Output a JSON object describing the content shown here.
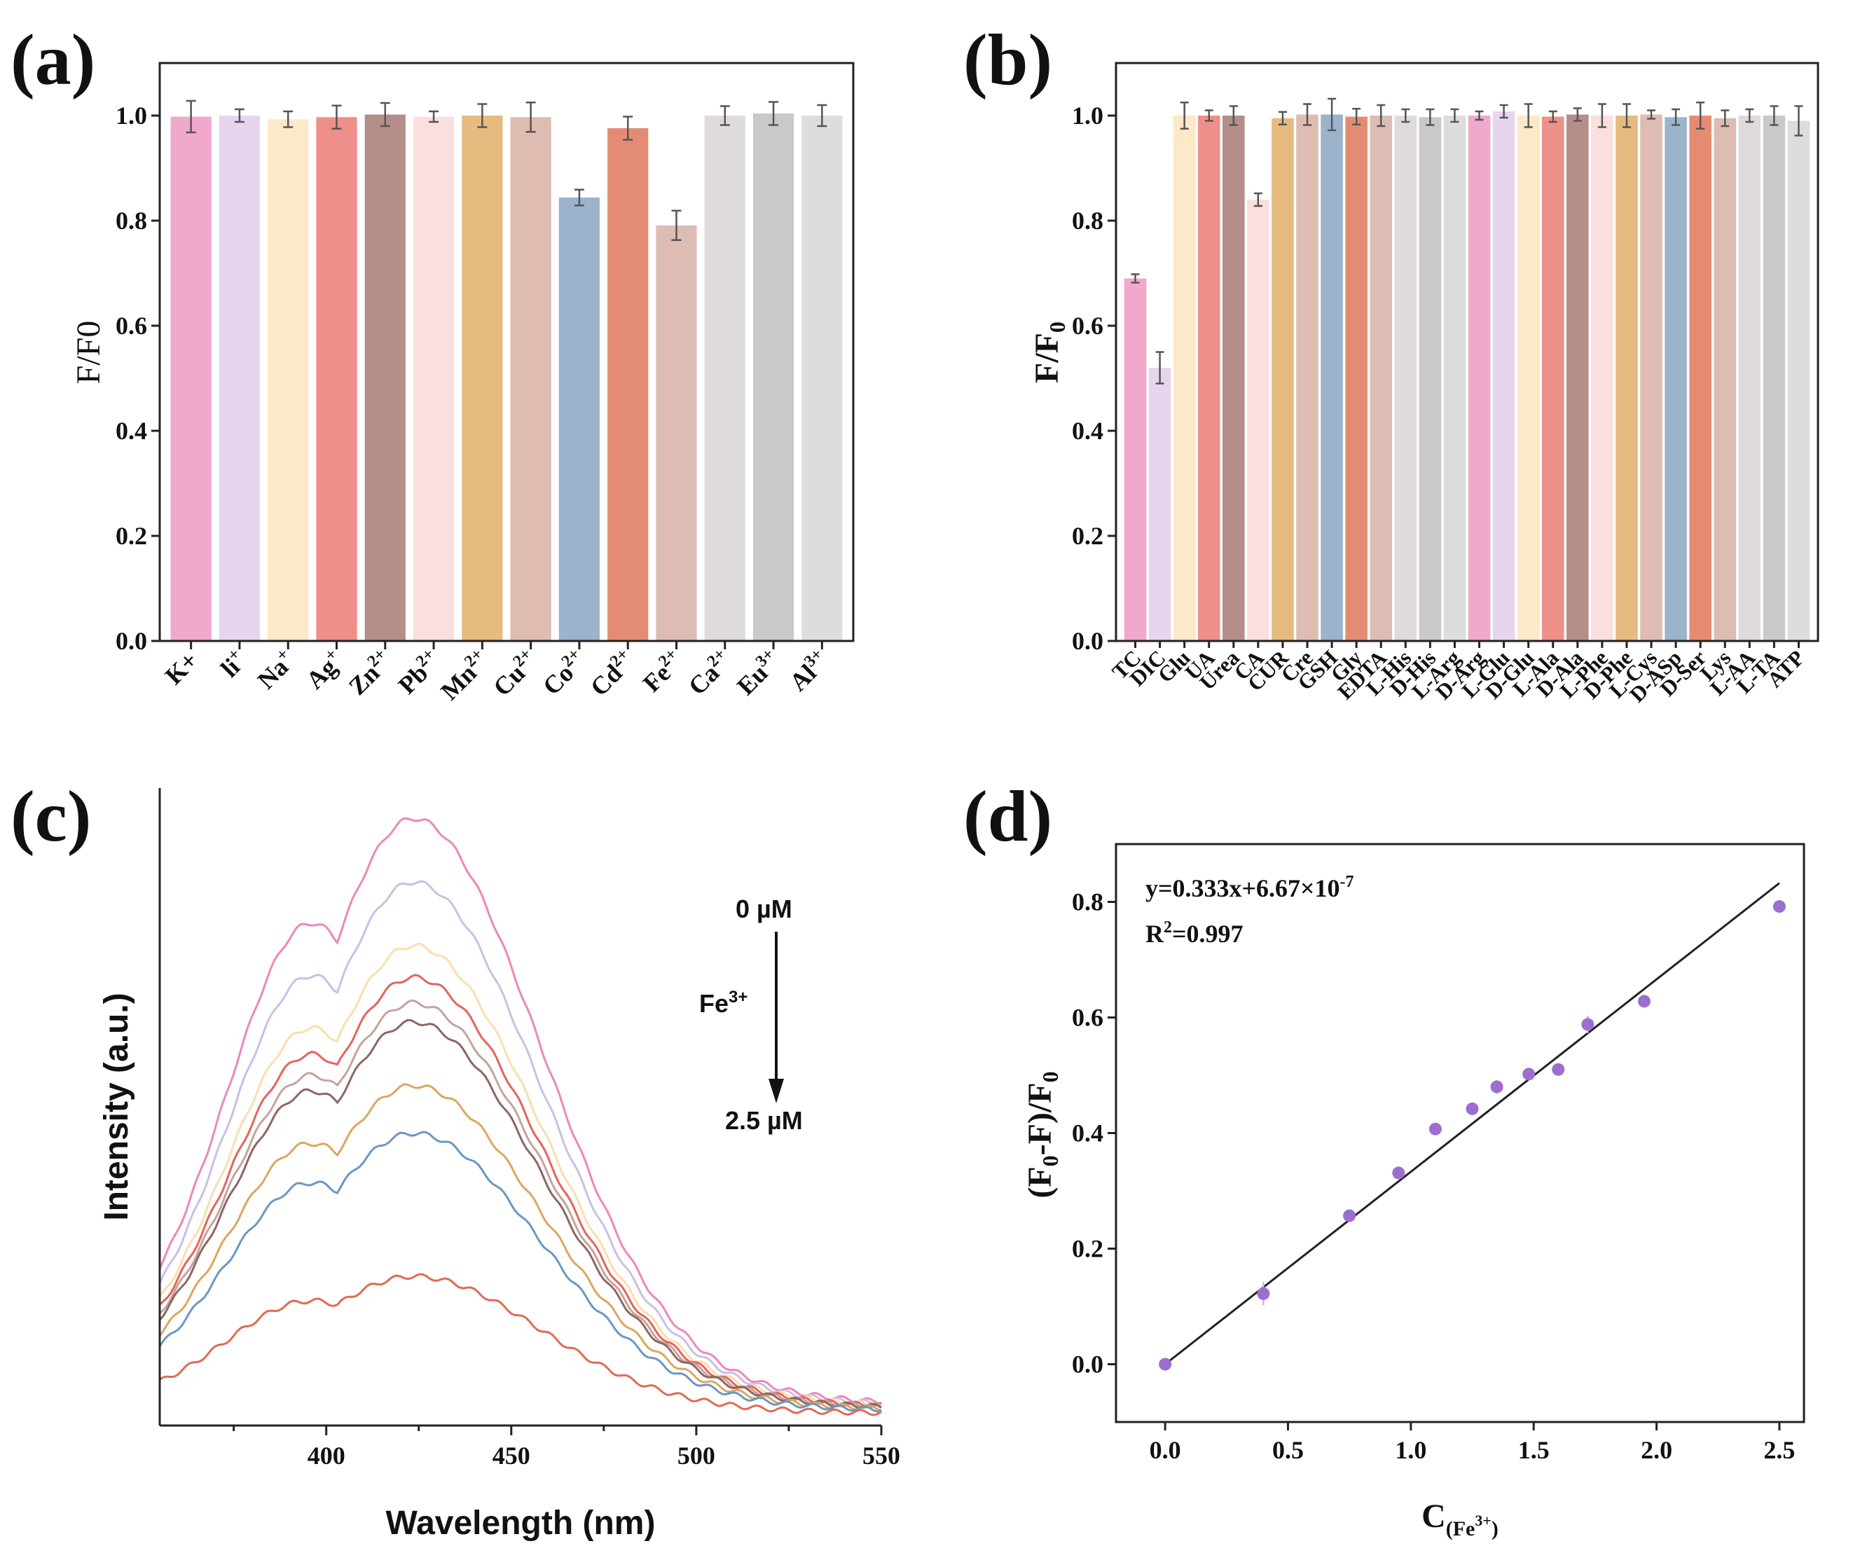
{
  "chart_data": [
    {
      "panel": "(a)",
      "type": "bar",
      "ylabel": "F/F0",
      "ylim": [
        0,
        1.1
      ],
      "yticks": [
        "0.0",
        "0.2",
        "0.4",
        "0.6",
        "0.8",
        "1.0"
      ],
      "categories": [
        {
          "base": "K+",
          "sup": ""
        },
        {
          "base": "li",
          "sup": "+"
        },
        {
          "base": "Na",
          "sup": "+"
        },
        {
          "base": "Ag",
          "sup": "+"
        },
        {
          "base": "Zn",
          "sup": "2+"
        },
        {
          "base": "Pb",
          "sup": "2+"
        },
        {
          "base": "Mn",
          "sup": "2+"
        },
        {
          "base": "Cu",
          "sup": "2+"
        },
        {
          "base": "Co",
          "sup": "2+"
        },
        {
          "base": "Cd",
          "sup": "2+"
        },
        {
          "base": "Fe",
          "sup": "2+"
        },
        {
          "base": "Ca",
          "sup": "2+"
        },
        {
          "base": "Eu",
          "sup": "3+"
        },
        {
          "base": "Al",
          "sup": "3+"
        }
      ],
      "values": [
        0.998,
        1.0,
        0.993,
        0.997,
        1.002,
        0.998,
        1.0,
        0.997,
        0.844,
        0.976,
        0.791,
        1.0,
        1.004,
        1.0
      ],
      "errors": [
        0.03,
        0.012,
        0.015,
        0.022,
        0.022,
        0.01,
        0.022,
        0.028,
        0.015,
        0.022,
        0.028,
        0.018,
        0.022,
        0.02
      ],
      "colors": [
        "#f0a8cb",
        "#e5d6ee",
        "#fde8c8",
        "#ef8f89",
        "#b58d89",
        "#fbdfde",
        "#e5bb7f",
        "#dfbcb1",
        "#9bb4cb",
        "#e48c73",
        "#ddbcb4",
        "#dedade",
        "#cac9ca",
        "#dddddd"
      ]
    },
    {
      "panel": "(b)",
      "type": "bar",
      "ylabel": "F/F",
      "ylabel_sub": "0",
      "ylim": [
        0,
        1.1
      ],
      "yticks": [
        "0.0",
        "0.2",
        "0.4",
        "0.6",
        "0.8",
        "1.0"
      ],
      "categories": [
        "TC",
        "DIC",
        "Glu",
        "UA",
        "Urea",
        "CA",
        "CUR",
        "Cre",
        "GSH",
        "Gly",
        "EDTA",
        "L-His",
        "D-His",
        "L-Arg",
        "D-Arg",
        "L-Glu",
        "D-Glu",
        "L-Ala",
        "D-Ala",
        "L-Phe",
        "D-Phe",
        "L-Cys",
        "D-ASp",
        "D-Ser",
        "Lys",
        "L-AA",
        "L-TA",
        "ATP"
      ],
      "values": [
        0.69,
        0.52,
        1.0,
        1.0,
        1.0,
        0.84,
        0.995,
        1.002,
        1.002,
        0.998,
        1.0,
        1.0,
        0.997,
        1.0,
        1.0,
        1.008,
        1.0,
        0.998,
        1.002,
        1.0,
        1.0,
        1.002,
        0.997,
        1.0,
        0.995,
        1.0,
        1.0,
        0.99
      ],
      "errors": [
        0.008,
        0.03,
        0.025,
        0.01,
        0.018,
        0.012,
        0.012,
        0.02,
        0.03,
        0.015,
        0.02,
        0.012,
        0.015,
        0.012,
        0.008,
        0.012,
        0.022,
        0.01,
        0.012,
        0.022,
        0.022,
        0.008,
        0.015,
        0.025,
        0.015,
        0.012,
        0.018,
        0.028
      ],
      "colors": [
        "#f0a8cb",
        "#e5d6ee",
        "#fde8c8",
        "#ef8f89",
        "#b58d89",
        "#fbdfde",
        "#e5bb7f",
        "#dfbcb1",
        "#9bb4cb",
        "#e48c73",
        "#ddbcb4",
        "#dedade",
        "#cac9ca",
        "#dddddd",
        "#f0a8cb",
        "#e5d6ee",
        "#fde8c8",
        "#ef8f89",
        "#b58d89",
        "#fbdfde",
        "#e5bb7f",
        "#dfbcb1",
        "#9bb4cb",
        "#e48c73",
        "#ddbcb4",
        "#dedade",
        "#cac9ca",
        "#dddddd"
      ]
    },
    {
      "panel": "(c)",
      "type": "line",
      "xlabel": "Wavelength (nm)",
      "ylabel": "Intensity (a.u.)",
      "xlim": [
        355,
        550
      ],
      "ylim": [
        0,
        1
      ],
      "xticks": [
        "400",
        "450",
        "500",
        "550"
      ],
      "annotation_top": "0 µM",
      "annotation_bottom": "2.5 µM",
      "annotation_species": "Fe",
      "annotation_species_sup": "3+",
      "series": [
        {
          "peak": 0.94,
          "color": "#ee86bb"
        },
        {
          "peak": 0.84,
          "color": "#c8c0e6"
        },
        {
          "peak": 0.74,
          "color": "#fbdeae"
        },
        {
          "peak": 0.69,
          "color": "#e6635c"
        },
        {
          "peak": 0.65,
          "color": "#c3a49c"
        },
        {
          "peak": 0.62,
          "color": "#8d6664"
        },
        {
          "peak": 0.52,
          "color": "#dba75e"
        },
        {
          "peak": 0.445,
          "color": "#6b97c3"
        },
        {
          "peak": 0.22,
          "color": "#e06a55"
        }
      ]
    },
    {
      "panel": "(d)",
      "type": "scatter",
      "xlabel": "C",
      "xlabel_sub": "(Fe",
      "xlabel_sup": "3+",
      "xlabel_close": ")",
      "ylabel": "(F",
      "ylabel_sub": "0",
      "ylabel_mid": "-F)/F",
      "ylabel_sub2": "0",
      "xlim": [
        -0.2,
        2.6
      ],
      "ylim": [
        -0.1,
        0.9
      ],
      "xticks": [
        "0.0",
        "0.5",
        "1.0",
        "1.5",
        "2.0",
        "2.5"
      ],
      "yticks": [
        "0.0",
        "0.2",
        "0.4",
        "0.6",
        "0.8"
      ],
      "x": [
        0.0,
        0.4,
        0.75,
        0.95,
        1.1,
        1.25,
        1.35,
        1.48,
        1.6,
        1.72,
        1.95,
        2.5
      ],
      "y": [
        0.0,
        0.122,
        0.257,
        0.331,
        0.407,
        0.442,
        0.48,
        0.502,
        0.51,
        0.588,
        0.628,
        0.792
      ],
      "yerr": [
        0.005,
        0.02,
        0.008,
        0.01,
        0.008,
        0.008,
        0.012,
        0.01,
        0.008,
        0.015,
        0.01,
        0.008
      ],
      "fit": {
        "slope": 0.333,
        "intercept": 6.67e-07,
        "x_range": [
          0.0,
          2.5
        ]
      },
      "equation_text": "y=0.333x+6.67×10",
      "equation_sup": "-7",
      "r2_label": "R",
      "r2_sup": "2",
      "r2_value": "=0.997",
      "point_color": "#9b6fd0"
    }
  ]
}
